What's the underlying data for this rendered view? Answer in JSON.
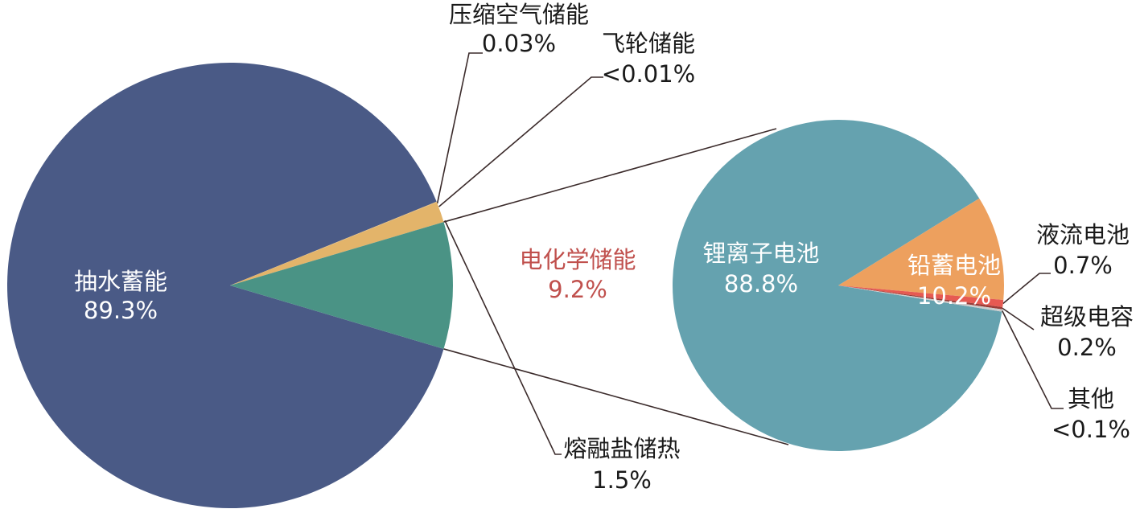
{
  "chart_data": [
    {
      "type": "pie",
      "slices": [
        {
          "name": "抽水蓄能",
          "value": 89.3,
          "value_label": "89.3%",
          "color": "#4a5a86"
        },
        {
          "name": "压缩空气储能",
          "value": 0.03,
          "value_label": "0.03%",
          "color": "#e3b46a"
        },
        {
          "name": "飞轮储能",
          "value": 0.01,
          "value_label": "<0.01%",
          "color": "#e3b46a"
        },
        {
          "name": "熔融盐储热",
          "value": 1.5,
          "value_label": "1.5%",
          "color": "#e3b46a"
        },
        {
          "name": "电化学储能",
          "value": 9.2,
          "value_label": "9.2%",
          "color": "#4a9385",
          "label_color": "#c0504d"
        }
      ]
    },
    {
      "type": "pie",
      "parent": "电化学储能",
      "slices": [
        {
          "name": "锂离子电池",
          "value": 88.8,
          "value_label": "88.8%",
          "color": "#65a2af"
        },
        {
          "name": "铅蓄电池",
          "value": 10.2,
          "value_label": "10.2%",
          "color": "#eda05e"
        },
        {
          "name": "液流电池",
          "value": 0.7,
          "value_label": "0.7%",
          "color": "#e65a52"
        },
        {
          "name": "超级电容",
          "value": 0.2,
          "value_label": "0.2%",
          "color": "#9a3c37"
        },
        {
          "name": "其他",
          "value": 0.1,
          "value_label": "<0.1%",
          "color": "#cccccc"
        }
      ]
    }
  ]
}
